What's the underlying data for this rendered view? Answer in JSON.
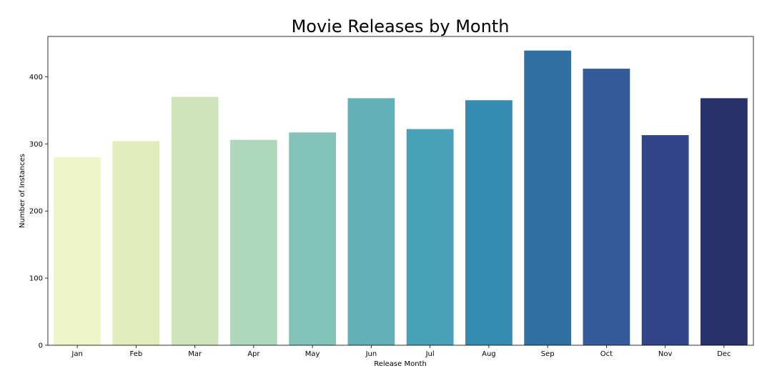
{
  "chart_data": {
    "type": "bar",
    "title": "Movie Releases by Month",
    "xlabel": "Release Month",
    "ylabel": "Number of Instances",
    "categories": [
      "Jan",
      "Feb",
      "Mar",
      "Apr",
      "May",
      "Jun",
      "Jul",
      "Aug",
      "Sep",
      "Oct",
      "Nov",
      "Dec"
    ],
    "values": [
      280,
      304,
      370,
      306,
      317,
      368,
      322,
      365,
      439,
      412,
      313,
      368
    ],
    "colors": [
      "#eef5c8",
      "#e0edbb",
      "#cde4bc",
      "#aed7bc",
      "#84c3b8",
      "#63b1b7",
      "#48a0b6",
      "#368bb0",
      "#3171a2",
      "#325b98",
      "#334589",
      "#263269"
    ],
    "ylim": [
      0,
      460
    ],
    "yticks": [
      0,
      100,
      200,
      300,
      400
    ],
    "grid": false,
    "legend": "none"
  }
}
